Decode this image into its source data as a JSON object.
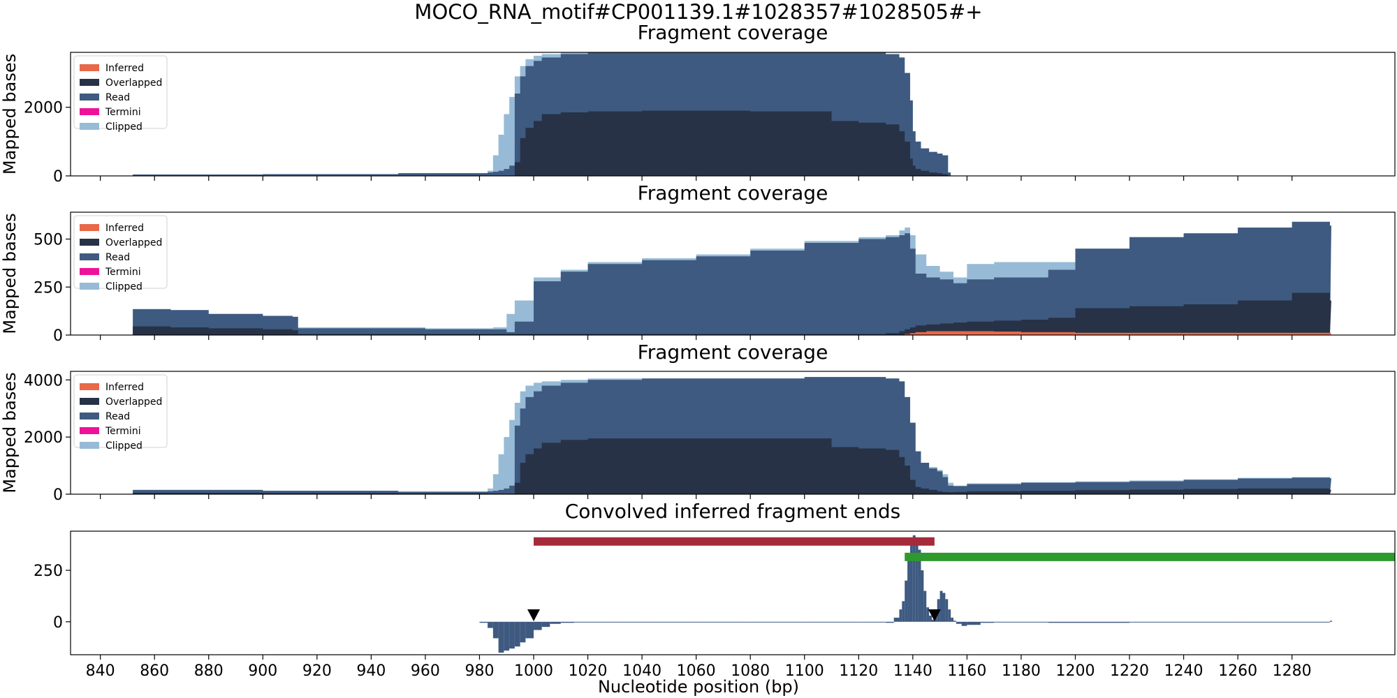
{
  "figure": {
    "suptitle": "MOCO_RNA_motif#CP001139.1#1028357#1028505#+",
    "xlabel": "Nucleotide position (bp)",
    "x_ticks": [
      840,
      860,
      880,
      900,
      920,
      940,
      960,
      980,
      1000,
      1020,
      1040,
      1060,
      1080,
      1100,
      1120,
      1140,
      1160,
      1180,
      1200,
      1220,
      1240,
      1260,
      1280
    ]
  },
  "legend": [
    {
      "label": "Inferred",
      "color": "#E8684A"
    },
    {
      "label": "Overlapped",
      "color": "#273246"
    },
    {
      "label": "Read",
      "color": "#3E5A80"
    },
    {
      "label": "Termini",
      "color": "#EE1299"
    },
    {
      "label": "Clipped",
      "color": "#97BBD6"
    }
  ],
  "chart_data": [
    {
      "type": "area",
      "title": "Fragment coverage",
      "ylabel": "Mapped bases",
      "xlim": [
        829,
        1318
      ],
      "ylim": [
        0,
        3600
      ],
      "yticks": [
        0,
        2000
      ],
      "x": [
        852,
        900,
        950,
        983,
        985,
        987,
        989,
        991,
        993,
        995,
        997,
        1000,
        1003,
        1010,
        1020,
        1040,
        1060,
        1080,
        1100,
        1110,
        1120,
        1130,
        1135,
        1137,
        1139,
        1140,
        1141,
        1143,
        1146,
        1149,
        1151,
        1153,
        1154
      ],
      "series": [
        {
          "name": "Inferred",
          "values": [
            0,
            0,
            0,
            0,
            0,
            0,
            0,
            0,
            0,
            0,
            0,
            0,
            0,
            0,
            0,
            0,
            0,
            0,
            0,
            0,
            0,
            0,
            0,
            0,
            0,
            0,
            0,
            0,
            0,
            0,
            0,
            0,
            0
          ]
        },
        {
          "name": "Overlapped",
          "values": [
            0,
            0,
            0,
            0,
            0,
            0,
            0,
            0,
            400,
            1100,
            1400,
            1600,
            1800,
            1850,
            1880,
            1900,
            1900,
            1880,
            1880,
            1600,
            1550,
            1500,
            1300,
            1000,
            500,
            300,
            200,
            150,
            100,
            80,
            50,
            0,
            0
          ]
        },
        {
          "name": "Read",
          "values": [
            40,
            50,
            80,
            100,
            120,
            150,
            200,
            300,
            2400,
            2900,
            3200,
            3350,
            3450,
            3550,
            3600,
            3600,
            3600,
            3600,
            3600,
            3600,
            3600,
            3550,
            3450,
            3000,
            2200,
            1300,
            1000,
            800,
            700,
            650,
            600,
            100,
            0
          ]
        },
        {
          "name": "Termini",
          "values": [
            0,
            0,
            0,
            0,
            0,
            0,
            0,
            0,
            0,
            0,
            0,
            0,
            0,
            0,
            0,
            0,
            0,
            0,
            0,
            0,
            0,
            0,
            40,
            80,
            80,
            80,
            60,
            50,
            40,
            30,
            20,
            20,
            0
          ]
        },
        {
          "name": "Clipped",
          "values": [
            40,
            50,
            80,
            150,
            600,
            1200,
            1800,
            2300,
            2900,
            3200,
            3400,
            3500,
            3550,
            3600,
            3600,
            3600,
            3600,
            3600,
            3600,
            3600,
            3600,
            3550,
            3450,
            3000,
            2200,
            1300,
            1000,
            800,
            700,
            650,
            600,
            100,
            0
          ]
        }
      ]
    },
    {
      "type": "area",
      "title": "Fragment coverage",
      "ylabel": "Mapped bases",
      "xlim": [
        829,
        1318
      ],
      "ylim": [
        0,
        640
      ],
      "yticks": [
        0,
        250,
        500
      ],
      "x": [
        852,
        866,
        880,
        900,
        911,
        913,
        930,
        960,
        980,
        985,
        990,
        993,
        1000,
        1010,
        1020,
        1040,
        1060,
        1080,
        1100,
        1120,
        1130,
        1135,
        1137,
        1139,
        1141,
        1145,
        1150,
        1155,
        1160,
        1170,
        1180,
        1190,
        1200,
        1220,
        1240,
        1260,
        1280,
        1294
      ],
      "series": [
        {
          "name": "Inferred",
          "values": [
            0,
            0,
            0,
            0,
            0,
            0,
            0,
            0,
            0,
            0,
            0,
            0,
            0,
            0,
            0,
            0,
            0,
            0,
            0,
            0,
            0,
            0,
            5,
            10,
            15,
            20,
            20,
            20,
            20,
            18,
            15,
            15,
            12,
            12,
            12,
            12,
            12,
            12
          ]
        },
        {
          "name": "Overlapped",
          "values": [
            45,
            40,
            35,
            30,
            25,
            5,
            5,
            5,
            5,
            5,
            5,
            5,
            5,
            5,
            5,
            5,
            5,
            5,
            5,
            5,
            10,
            20,
            30,
            40,
            50,
            55,
            60,
            65,
            70,
            75,
            80,
            90,
            140,
            150,
            160,
            180,
            220,
            180
          ]
        },
        {
          "name": "Read",
          "values": [
            135,
            130,
            110,
            100,
            95,
            35,
            35,
            30,
            30,
            30,
            15,
            70,
            280,
            330,
            370,
            390,
            410,
            440,
            480,
            500,
            510,
            520,
            530,
            450,
            320,
            300,
            290,
            270,
            290,
            300,
            300,
            340,
            450,
            510,
            530,
            560,
            590,
            570
          ]
        },
        {
          "name": "Termini",
          "values": [
            0,
            0,
            0,
            0,
            0,
            0,
            0,
            0,
            0,
            0,
            0,
            0,
            10,
            10,
            5,
            5,
            5,
            5,
            5,
            5,
            5,
            5,
            10,
            5,
            5,
            5,
            5,
            5,
            5,
            5,
            5,
            5,
            5,
            5,
            5,
            5,
            5,
            5
          ]
        },
        {
          "name": "Clipped",
          "values": [
            135,
            130,
            110,
            100,
            95,
            40,
            40,
            35,
            35,
            40,
            110,
            180,
            300,
            340,
            380,
            400,
            420,
            450,
            490,
            510,
            520,
            545,
            560,
            520,
            420,
            360,
            330,
            300,
            370,
            380,
            380,
            380,
            450,
            510,
            530,
            560,
            590,
            570
          ]
        }
      ]
    },
    {
      "type": "area",
      "title": "Fragment coverage",
      "ylabel": "Mapped bases",
      "xlim": [
        829,
        1318
      ],
      "ylim": [
        0,
        4300
      ],
      "yticks": [
        0,
        2000,
        4000
      ],
      "x": [
        852,
        900,
        950,
        983,
        985,
        987,
        989,
        991,
        993,
        995,
        997,
        1000,
        1003,
        1010,
        1020,
        1040,
        1060,
        1080,
        1100,
        1110,
        1120,
        1130,
        1135,
        1137,
        1139,
        1141,
        1143,
        1146,
        1149,
        1151,
        1153,
        1155,
        1160,
        1180,
        1200,
        1220,
        1240,
        1260,
        1280,
        1294
      ],
      "series": [
        {
          "name": "Inferred",
          "values": [
            0,
            0,
            0,
            0,
            0,
            0,
            0,
            0,
            0,
            0,
            0,
            0,
            0,
            0,
            0,
            0,
            0,
            0,
            0,
            0,
            0,
            0,
            0,
            0,
            0,
            0,
            0,
            0,
            0,
            0,
            0,
            0,
            0,
            0,
            0,
            0,
            0,
            0,
            0,
            0
          ]
        },
        {
          "name": "Overlapped",
          "values": [
            50,
            40,
            30,
            20,
            20,
            20,
            20,
            20,
            400,
            1100,
            1400,
            1600,
            1800,
            1900,
            1950,
            1950,
            1950,
            1950,
            1950,
            1650,
            1600,
            1550,
            1300,
            1000,
            500,
            250,
            200,
            150,
            100,
            80,
            70,
            80,
            100,
            120,
            140,
            160,
            180,
            200,
            200,
            150
          ]
        },
        {
          "name": "Read",
          "values": [
            150,
            120,
            90,
            100,
            120,
            150,
            200,
            300,
            2400,
            3000,
            3400,
            3600,
            3800,
            3900,
            4000,
            4050,
            4050,
            4050,
            4100,
            4100,
            4100,
            4050,
            3950,
            3400,
            2500,
            1500,
            1100,
            900,
            800,
            600,
            300,
            280,
            350,
            400,
            420,
            450,
            500,
            550,
            580,
            550
          ]
        },
        {
          "name": "Termini",
          "values": [
            0,
            0,
            0,
            0,
            0,
            0,
            0,
            0,
            0,
            0,
            0,
            0,
            0,
            0,
            0,
            0,
            0,
            0,
            0,
            0,
            0,
            0,
            40,
            80,
            80,
            80,
            60,
            50,
            40,
            30,
            20,
            20,
            10,
            10,
            10,
            10,
            10,
            10,
            10,
            10
          ]
        },
        {
          "name": "Clipped",
          "values": [
            150,
            120,
            90,
            200,
            700,
            1400,
            2000,
            2600,
            3200,
            3600,
            3800,
            3900,
            3950,
            4000,
            4050,
            4050,
            4050,
            4050,
            4100,
            4100,
            4100,
            4050,
            3950,
            3400,
            2500,
            1500,
            1100,
            950,
            850,
            700,
            400,
            300,
            380,
            420,
            450,
            480,
            520,
            570,
            600,
            570
          ]
        }
      ]
    },
    {
      "type": "bar",
      "title": "Convolved inferred fragment ends",
      "xlim": [
        829,
        1318
      ],
      "ylim": [
        -160,
        440
      ],
      "yticks": [
        0,
        250
      ],
      "x": [
        980,
        983,
        985,
        987,
        989,
        991,
        993,
        995,
        997,
        1000,
        1003,
        1006,
        1010,
        1015,
        1020,
        1030,
        1040,
        1060,
        1080,
        1100,
        1120,
        1130,
        1133,
        1135,
        1136,
        1137,
        1138,
        1139,
        1140,
        1141,
        1142,
        1143,
        1144,
        1145,
        1146,
        1147,
        1148,
        1149,
        1150,
        1151,
        1152,
        1153,
        1154,
        1155,
        1156,
        1158,
        1160,
        1165,
        1170,
        1190,
        1220,
        1260,
        1294
      ],
      "values": [
        -5,
        -30,
        -80,
        -150,
        -140,
        -130,
        -120,
        -100,
        -80,
        -40,
        -25,
        -10,
        -5,
        -3,
        -2,
        -2,
        -2,
        -2,
        -2,
        -2,
        -2,
        -5,
        20,
        60,
        100,
        200,
        300,
        380,
        420,
        400,
        350,
        250,
        150,
        70,
        30,
        10,
        40,
        110,
        150,
        140,
        110,
        60,
        20,
        5,
        -10,
        -20,
        -15,
        -5,
        -2,
        -5,
        -2,
        -2,
        5
      ],
      "markers": [
        {
          "x": 1000,
          "y": 30
        },
        {
          "x": 1148,
          "y": 30
        }
      ],
      "ranges": [
        {
          "start": 1000,
          "end": 1148,
          "y": 390,
          "color": "#A52A3A"
        },
        {
          "start": 1137,
          "end": 1318,
          "y": 315,
          "color": "#2E9A2E"
        }
      ]
    }
  ]
}
